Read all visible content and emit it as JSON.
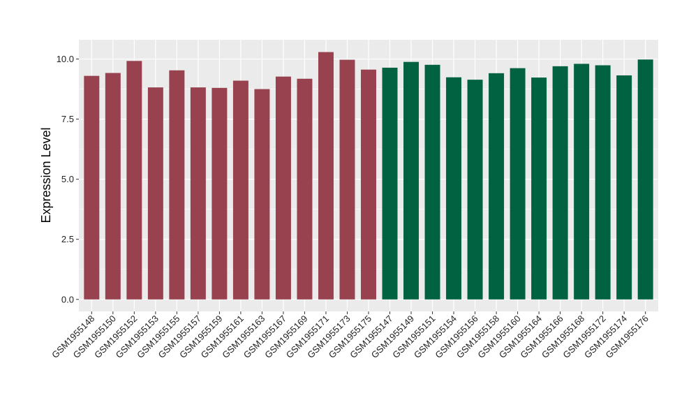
{
  "chart_data": {
    "type": "bar",
    "title": "",
    "xlabel": "",
    "ylabel": "Expression Level",
    "ylim": [
      -0.5,
      10.8
    ],
    "yticks": [
      0.0,
      2.5,
      5.0,
      7.5,
      10.0
    ],
    "ytick_labels": [
      "0.0",
      "2.5",
      "5.0",
      "7.5",
      "10.0"
    ],
    "grid": true,
    "legend": "none",
    "categories": [
      "GSM1955148",
      "GSM1955150",
      "GSM1955152",
      "GSM1955153",
      "GSM1955155",
      "GSM1955157",
      "GSM1955159",
      "GSM1955161",
      "GSM1955163",
      "GSM1955167",
      "GSM1955169",
      "GSM1955171",
      "GSM1955173",
      "GSM1955175",
      "GSM1955147",
      "GSM1955149",
      "GSM1955151",
      "GSM1955154",
      "GSM1955156",
      "GSM1955158",
      "GSM1955160",
      "GSM1955164",
      "GSM1955166",
      "GSM1955168",
      "GSM1955172",
      "GSM1955174",
      "GSM1955176"
    ],
    "values": [
      9.3,
      9.42,
      9.92,
      8.82,
      9.53,
      8.82,
      8.8,
      9.1,
      8.75,
      9.27,
      9.18,
      10.29,
      9.97,
      9.56,
      9.64,
      9.88,
      9.76,
      9.24,
      9.14,
      9.41,
      9.62,
      9.23,
      9.7,
      9.8,
      9.74,
      9.32,
      9.98
    ],
    "group_colors": {
      "first": "#99424f",
      "second": "#006241"
    },
    "first_group_count": 14,
    "panel_color": "#ebebeb",
    "grid_color": "#ffffff"
  }
}
